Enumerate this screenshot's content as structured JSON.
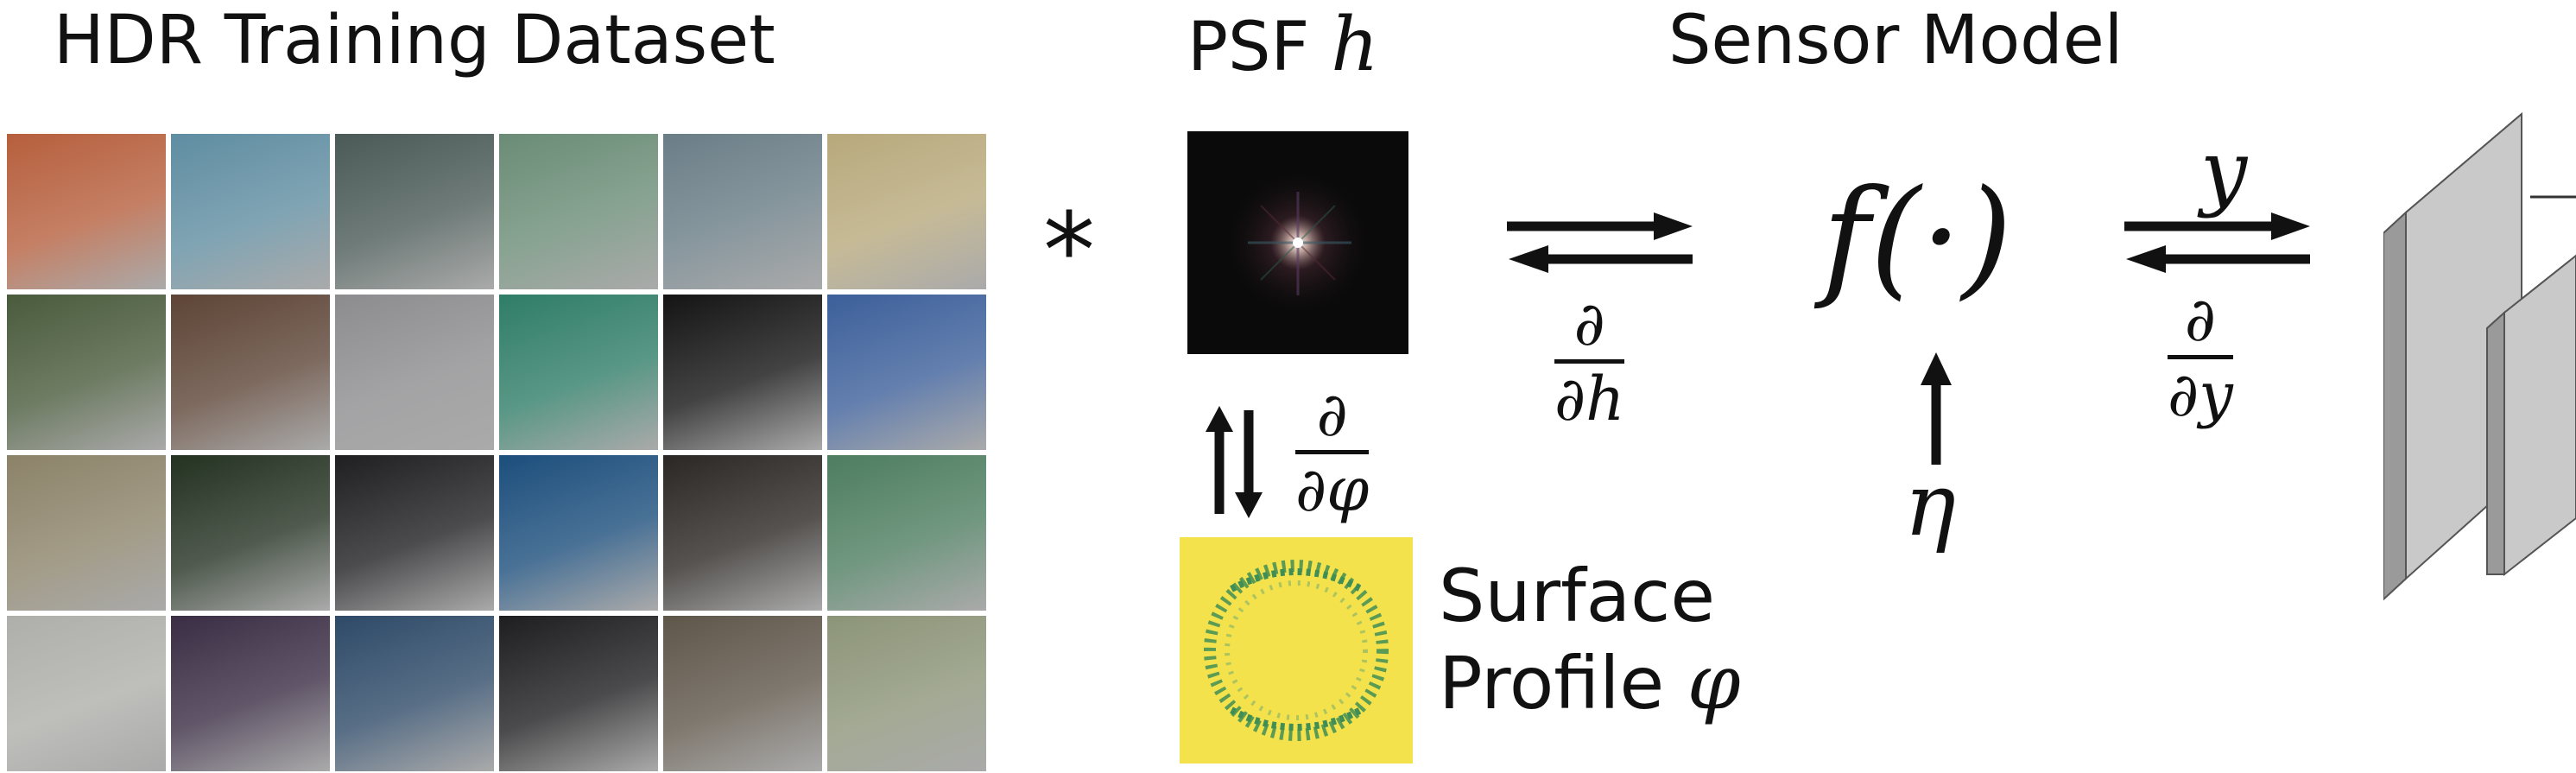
{
  "headings": {
    "dataset": "HDR Training Dataset",
    "psf_prefix": "PSF",
    "psf_symbol": "h",
    "sensor": "Sensor Model"
  },
  "dataset_tiles": [
    "#b65f3d",
    "#5f8da1",
    "#4a5a56",
    "#6a8c76",
    "#6a7d86",
    "#b8a97c",
    "#4a5b3c",
    "#5d4436",
    "#8c8c8e",
    "#2f7d67",
    "#141414",
    "#3c5f9a",
    "#8b8268",
    "#243222",
    "#1f1f22",
    "#1c4e7c",
    "#2b2724",
    "#4d7d60",
    "#aeaeaa",
    "#3a2d44",
    "#2e4a68",
    "#1e1e20",
    "#5f564a",
    "#8c9478"
  ],
  "convolution": {
    "symbol": "*"
  },
  "psf_partial": {
    "numerator": "∂",
    "denominator": "∂h"
  },
  "phi_partial": {
    "numerator": "∂",
    "denominator": "∂φ"
  },
  "surface_profile": {
    "line1": "Surface",
    "line2_prefix": "Profile",
    "symbol": "φ"
  },
  "sensor_model": {
    "function": "f(·)",
    "noise": "η"
  },
  "output": {
    "symbol": "y",
    "numerator": "∂",
    "denominator": "∂y"
  },
  "colors": {
    "psf_bg": "#0a0a0a",
    "surface_bg": "#f3e24c",
    "surface_pattern": "#3f8e55",
    "network_gray": "#c9c9c9"
  }
}
